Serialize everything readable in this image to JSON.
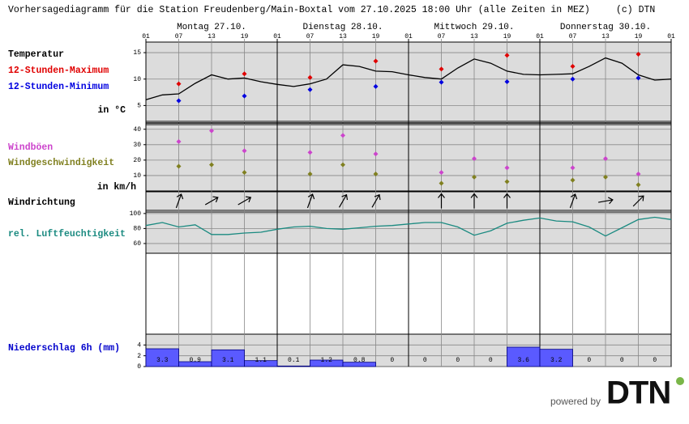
{
  "title": "Vorhersagediagramm für die Station Freudenberg/Main-Boxtal vom 27.10.2025 18:00 Uhr (alle Zeiten in MEZ)",
  "copyright": "(c) DTN",
  "footer": {
    "powered_by": "powered by",
    "logo": "DTN"
  },
  "chart_data": [
    {
      "type": "line",
      "days": [
        "Montag 27.10.",
        "Dienstag 28.10.",
        "Mittwoch 29.10.",
        "Donnerstag 30.10."
      ],
      "xlim": [
        0,
        96
      ],
      "xticks": [
        {
          "value": 0,
          "label": "01"
        },
        {
          "value": 6,
          "label": "07"
        },
        {
          "value": 12,
          "label": "13"
        },
        {
          "value": 18,
          "label": "19"
        },
        {
          "value": 24,
          "label": "01"
        },
        {
          "value": 30,
          "label": "07"
        },
        {
          "value": 36,
          "label": "13"
        },
        {
          "value": 42,
          "label": "19"
        },
        {
          "value": 48,
          "label": "01"
        },
        {
          "value": 54,
          "label": "07"
        },
        {
          "value": 60,
          "label": "13"
        },
        {
          "value": 66,
          "label": "19"
        },
        {
          "value": 72,
          "label": "01"
        },
        {
          "value": 78,
          "label": "07"
        },
        {
          "value": 84,
          "label": "13"
        },
        {
          "value": 90,
          "label": "19"
        },
        {
          "value": 96,
          "label": "01"
        }
      ],
      "x": [
        0,
        3,
        6,
        9,
        12,
        15,
        18,
        21,
        24,
        27,
        30,
        33,
        36,
        39,
        42,
        45,
        48,
        51,
        54,
        57,
        60,
        63,
        66,
        69,
        72,
        75,
        78,
        81,
        84,
        87,
        90,
        93,
        96
      ],
      "ylim": [
        2,
        17
      ],
      "yticks": [
        5,
        10,
        15
      ],
      "grid": true,
      "y_label": "in °C",
      "series": [
        {
          "name": "Temperatur",
          "color": "#000000",
          "values": [
            6.1,
            7,
            7.2,
            9.2,
            10.8,
            10,
            10.2,
            9.5,
            9,
            8.6,
            9.1,
            10,
            12.7,
            12.4,
            11.5,
            11.4,
            10.8,
            10.3,
            10,
            12.1,
            13.8,
            13,
            11.5,
            10.9,
            10.8,
            10.9,
            11,
            12.4,
            14,
            13,
            10.8,
            9.8,
            10
          ]
        },
        {
          "name": "12-Stunden-Maximum",
          "color": "#e00000",
          "marker": "diamond",
          "x": [
            6,
            18,
            30,
            42,
            54,
            66,
            78,
            90
          ],
          "values": [
            9.1,
            11,
            10.3,
            13.4,
            11.9,
            14.5,
            12.4,
            14.7
          ]
        },
        {
          "name": "12-Stunden-Minimum",
          "color": "#0000e0",
          "marker": "diamond",
          "x": [
            6,
            18,
            30,
            42,
            54,
            66,
            78,
            90
          ],
          "values": [
            5.9,
            6.8,
            8,
            8.6,
            9.4,
            9.5,
            10,
            10.2
          ]
        }
      ]
    },
    {
      "type": "scatter",
      "x": [
        6,
        12,
        18,
        30,
        36,
        42,
        54,
        60,
        66,
        78,
        84,
        90
      ],
      "ylim": [
        0,
        43
      ],
      "yticks": [
        10,
        20,
        30,
        40
      ],
      "grid": true,
      "y_label": "in km/h",
      "series": [
        {
          "name": "Windböen",
          "color": "#cc44cc",
          "values": [
            32,
            39,
            26,
            25,
            36,
            24,
            12,
            21,
            15,
            15,
            21,
            11
          ]
        },
        {
          "name": "Windgeschwindigkeit",
          "color": "#808020",
          "values": [
            16,
            17,
            12,
            11,
            17,
            11,
            5,
            9,
            6,
            7,
            9,
            4
          ]
        }
      ]
    },
    {
      "type": "arrows",
      "title": "Windrichtung",
      "x": [
        6,
        12,
        18,
        30,
        36,
        42,
        54,
        60,
        66,
        78,
        84,
        90
      ],
      "values": [
        20,
        60,
        60,
        20,
        30,
        30,
        0,
        0,
        0,
        20,
        80,
        45
      ]
    },
    {
      "type": "line",
      "x": [
        0,
        3,
        6,
        9,
        12,
        15,
        18,
        21,
        24,
        27,
        30,
        33,
        36,
        39,
        42,
        45,
        48,
        51,
        54,
        57,
        60,
        63,
        66,
        69,
        72,
        75,
        78,
        81,
        84,
        87,
        90,
        93,
        96
      ],
      "ylim": [
        47,
        102
      ],
      "yticks": [
        60,
        80,
        100
      ],
      "grid": true,
      "series": [
        {
          "name": "rel. Luftfeuchtigkeit",
          "color": "#1a8a80",
          "values": [
            84,
            88,
            82,
            85,
            72,
            72,
            74,
            75,
            79,
            82,
            83,
            80,
            79,
            81,
            83,
            84,
            86,
            88,
            88,
            82,
            71,
            77,
            87,
            91,
            94,
            90,
            89,
            82,
            70,
            81,
            92,
            95,
            92
          ]
        }
      ]
    },
    {
      "type": "histogram",
      "title": "Niederschlag 6h (mm)",
      "color": "#5a5aff",
      "bins": [
        0,
        6,
        12,
        18,
        24,
        30,
        36,
        42,
        48,
        54,
        60,
        66,
        72,
        78,
        84,
        90,
        96
      ],
      "values": [
        3.3,
        0.9,
        3.1,
        1.1,
        0.1,
        1.2,
        0.8,
        0,
        0,
        0,
        0,
        3.6,
        3.2,
        0,
        0,
        0
      ],
      "ylim": [
        0,
        6
      ],
      "yticks": [
        0,
        2,
        4
      ],
      "grid": true
    }
  ]
}
